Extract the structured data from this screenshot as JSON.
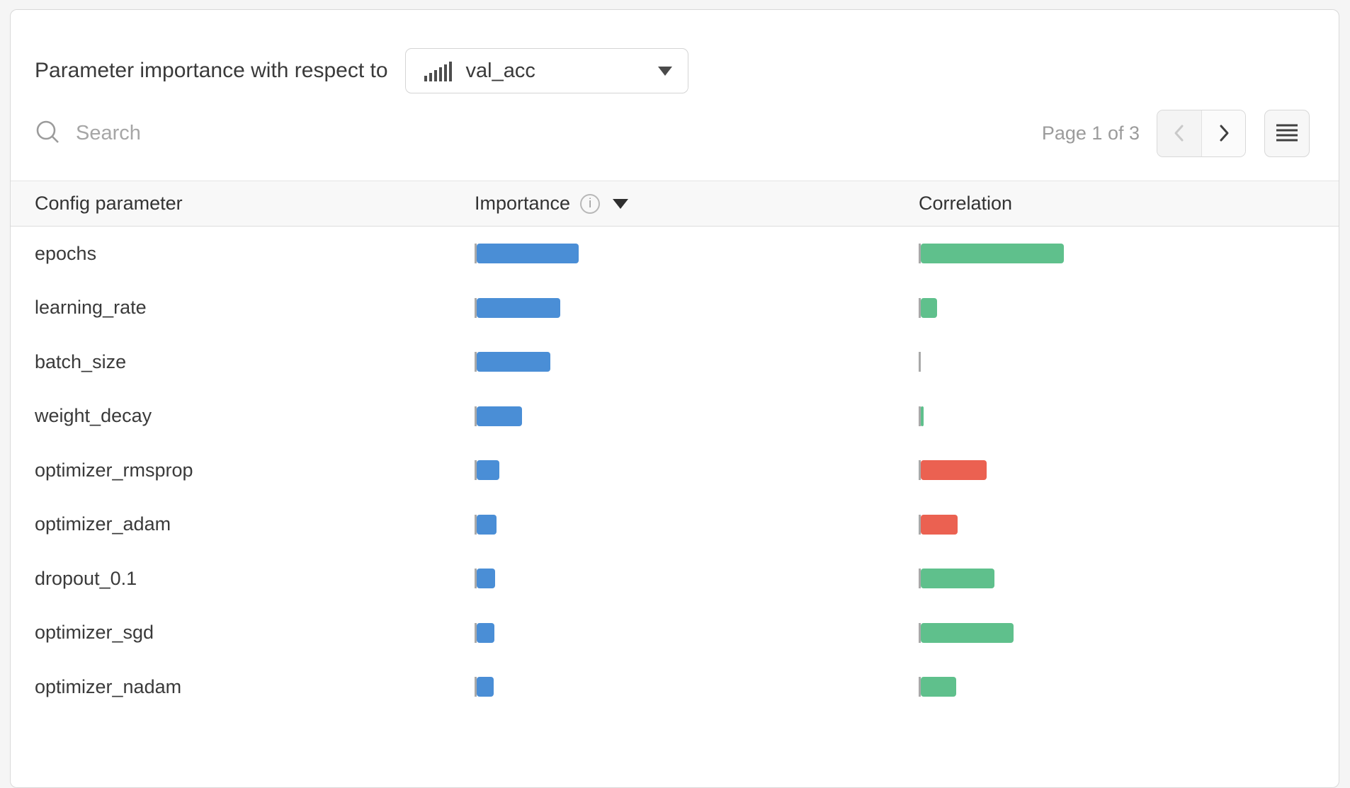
{
  "panel": {
    "title": "Parameter importance with respect to",
    "metric_selector": {
      "value": "val_acc",
      "icon": "histogram-icon"
    },
    "search": {
      "placeholder": "Search",
      "value": ""
    },
    "pagination": {
      "label": "Page 1 of 3",
      "prev_enabled": false,
      "next_enabled": true
    }
  },
  "table": {
    "columns": [
      "Config parameter",
      "Importance",
      "Correlation"
    ],
    "rows": [
      {
        "name": "epochs",
        "importance_w": 144,
        "correlation_w": 202,
        "correlation_sign": "positive"
      },
      {
        "name": "learning_rate",
        "importance_w": 118,
        "correlation_w": 23,
        "correlation_sign": "positive"
      },
      {
        "name": "batch_size",
        "importance_w": 104,
        "correlation_w": 0,
        "correlation_sign": "neutral"
      },
      {
        "name": "weight_decay",
        "importance_w": 64,
        "correlation_w": 4,
        "correlation_sign": "positive"
      },
      {
        "name": "optimizer_rmsprop",
        "importance_w": 32,
        "correlation_w": 93,
        "correlation_sign": "negative"
      },
      {
        "name": "optimizer_adam",
        "importance_w": 28,
        "correlation_w": 52,
        "correlation_sign": "negative"
      },
      {
        "name": "dropout_0.1",
        "importance_w": 26,
        "correlation_w": 104,
        "correlation_sign": "positive"
      },
      {
        "name": "optimizer_sgd",
        "importance_w": 25,
        "correlation_w": 131,
        "correlation_sign": "positive"
      },
      {
        "name": "optimizer_nadam",
        "importance_w": 24,
        "correlation_w": 50,
        "correlation_sign": "positive"
      }
    ]
  },
  "colors": {
    "importance_bar": "#4a8ed6",
    "correlation_positive": "#5fc08c",
    "correlation_negative": "#eb6151",
    "baseline": "#a9a9a9"
  }
}
